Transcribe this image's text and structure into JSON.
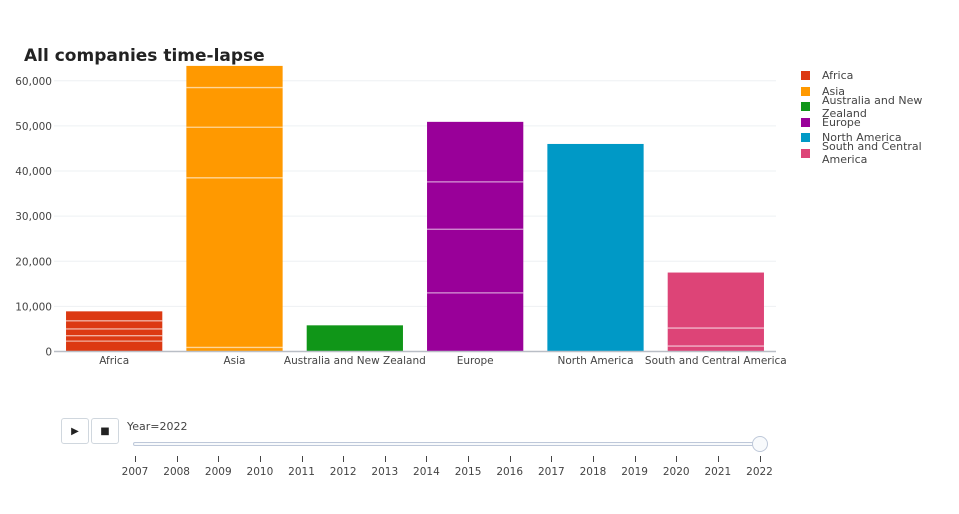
{
  "chart_data": {
    "type": "bar",
    "title": "All companies time-lapse",
    "xlabel": "",
    "ylabel": "",
    "ylim": [
      0,
      63500
    ],
    "yticks": [
      0,
      10000,
      20000,
      30000,
      40000,
      50000,
      60000
    ],
    "ytick_labels": [
      "0",
      "10,000",
      "20,000",
      "30,000",
      "40,000",
      "50,000",
      "60,000"
    ],
    "grid": true,
    "legend_position": "right",
    "categories": [
      "Africa",
      "Asia",
      "Australia and New Zealand",
      "Europe",
      "North America",
      "South and Central America"
    ],
    "values": [
      8900,
      63300,
      5800,
      50900,
      46000,
      17500
    ],
    "segment_boundaries": [
      [
        2300,
        3500,
        5000,
        6800
      ],
      [
        900,
        38500,
        49700,
        58500
      ],
      [],
      [
        13000,
        27100,
        37600
      ],
      [],
      [
        1200,
        5200
      ]
    ],
    "series": [
      {
        "name": "Africa",
        "color": "#DC3912"
      },
      {
        "name": "Asia",
        "color": "#FF9900"
      },
      {
        "name": "Australia and New Zealand",
        "color": "#109618"
      },
      {
        "name": "Europe",
        "color": "#990099"
      },
      {
        "name": "North America",
        "color": "#0099C6"
      },
      {
        "name": "South and Central America",
        "color": "#DD4477"
      }
    ]
  },
  "slider": {
    "current_label": "Year=2022",
    "years": [
      "2007",
      "2008",
      "2009",
      "2010",
      "2011",
      "2012",
      "2013",
      "2014",
      "2015",
      "2016",
      "2017",
      "2018",
      "2019",
      "2020",
      "2021",
      "2022"
    ],
    "selected": "2022"
  },
  "controls": {
    "play_label": "▶",
    "stop_label": "■"
  }
}
